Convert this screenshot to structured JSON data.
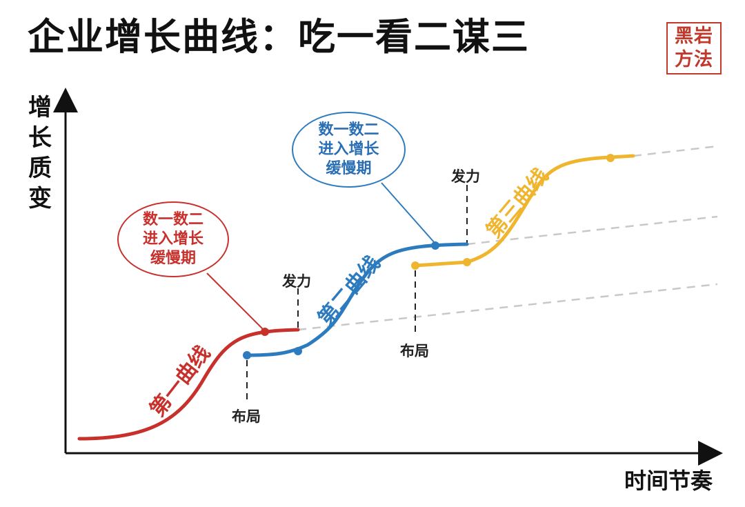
{
  "title": "企业增长曲线：吃一看二谋三",
  "logo": {
    "line1": "黑岩",
    "line2": "方法"
  },
  "axes": {
    "y_label": [
      "增",
      "长",
      "质",
      "变"
    ],
    "x_label": "时间节奏"
  },
  "callouts": {
    "red": [
      "数一数二",
      "进入增长",
      "缓慢期"
    ],
    "blue": [
      "数一数二",
      "进入增长",
      "缓慢期"
    ]
  },
  "markers": {
    "layout_label": "布局",
    "power_label": "发力"
  },
  "curves": [
    {
      "label": "第一曲线",
      "color": "#c8302c"
    },
    {
      "label": "第二曲线",
      "color": "#2d7bbf"
    },
    {
      "label": "第三曲线",
      "color": "#efb52e"
    }
  ],
  "colors": {
    "red": "#c8302c",
    "blue": "#2d7bbf",
    "yellow": "#efb52e",
    "dash": "#c8c8c8",
    "axis": "#111111"
  }
}
